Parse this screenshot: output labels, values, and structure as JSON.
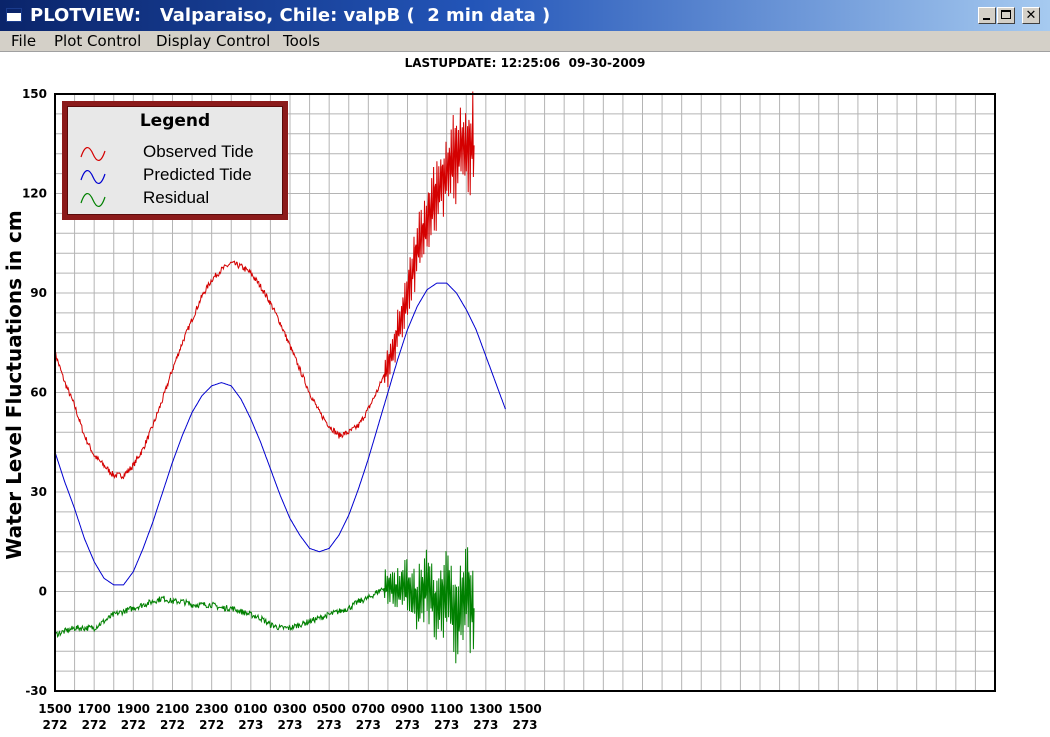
{
  "window": {
    "title": "PLOTVIEW:   Valparaiso, Chile: valpB (  2 min data )",
    "minimize_label": "_",
    "maximize_label": "□",
    "close_label": "✕"
  },
  "menubar": {
    "items": [
      "File",
      "Plot Control",
      "Display Control",
      "Tools"
    ]
  },
  "lastupdate": "LASTUPDATE: 12:25:06  09-30-2009",
  "legend": {
    "title": "Legend",
    "entries": [
      "Observed Tide",
      "Predicted Tide",
      "Residual"
    ]
  },
  "colors": {
    "observed": "#d40000",
    "predicted": "#0000d0",
    "residual": "#008000",
    "legend_border": "#8b1a1a",
    "grid": "#b4b4b4"
  },
  "chart_data": {
    "type": "line",
    "ylabel": "Water Level Fluctuations in cm",
    "ylim": [
      -30,
      150
    ],
    "yticks": [
      -30,
      0,
      30,
      60,
      90,
      120,
      150
    ],
    "grid": true,
    "legend_placement": "top-left",
    "x_unit": "hours since 1500 on day 272",
    "xlim": [
      0,
      48
    ],
    "xticks": [
      {
        "x": 0,
        "label": "1500",
        "day": "272"
      },
      {
        "x": 2,
        "label": "1700",
        "day": "272"
      },
      {
        "x": 4,
        "label": "1900",
        "day": "272"
      },
      {
        "x": 6,
        "label": "2100",
        "day": "272"
      },
      {
        "x": 8,
        "label": "2300",
        "day": "272"
      },
      {
        "x": 10,
        "label": "0100",
        "day": "273"
      },
      {
        "x": 12,
        "label": "0300",
        "day": "273"
      },
      {
        "x": 14,
        "label": "0500",
        "day": "273"
      },
      {
        "x": 16,
        "label": "0700",
        "day": "273"
      },
      {
        "x": 18,
        "label": "0900",
        "day": "273"
      },
      {
        "x": 20,
        "label": "1100",
        "day": "273"
      },
      {
        "x": 22,
        "label": "1300",
        "day": "273"
      },
      {
        "x": 24,
        "label": "1500",
        "day": "273"
      }
    ],
    "series": [
      {
        "name": "Observed Tide",
        "color": "#d40000",
        "points": [
          [
            0,
            72
          ],
          [
            0.5,
            63
          ],
          [
            1,
            56
          ],
          [
            1.5,
            47
          ],
          [
            2,
            41
          ],
          [
            2.5,
            38
          ],
          [
            3,
            35
          ],
          [
            3.5,
            35
          ],
          [
            4,
            38
          ],
          [
            4.5,
            43
          ],
          [
            5,
            50
          ],
          [
            5.5,
            58
          ],
          [
            6,
            67
          ],
          [
            6.5,
            75
          ],
          [
            7,
            82
          ],
          [
            7.5,
            89
          ],
          [
            8,
            94
          ],
          [
            8.5,
            97
          ],
          [
            9,
            99
          ],
          [
            9.5,
            98
          ],
          [
            10,
            96
          ],
          [
            10.5,
            92
          ],
          [
            11,
            87
          ],
          [
            11.5,
            81
          ],
          [
            12,
            74
          ],
          [
            12.5,
            67
          ],
          [
            13,
            60
          ],
          [
            13.5,
            54
          ],
          [
            14,
            50
          ],
          [
            14.5,
            47
          ],
          [
            15,
            48
          ],
          [
            15.5,
            50
          ],
          [
            16,
            55
          ],
          [
            16.5,
            61
          ],
          [
            17,
            68
          ],
          [
            17.5,
            78
          ],
          [
            18,
            90
          ],
          [
            18.5,
            103
          ],
          [
            19,
            112
          ],
          [
            19.5,
            120
          ],
          [
            20,
            127
          ],
          [
            20.5,
            132
          ],
          [
            21,
            135
          ],
          [
            21.4,
            134
          ]
        ]
      },
      {
        "name": "Predicted Tide",
        "color": "#0000d0",
        "points": [
          [
            0,
            42
          ],
          [
            0.5,
            33
          ],
          [
            1,
            25
          ],
          [
            1.5,
            16
          ],
          [
            2,
            9
          ],
          [
            2.5,
            4
          ],
          [
            3,
            2
          ],
          [
            3.5,
            2
          ],
          [
            4,
            6
          ],
          [
            4.5,
            13
          ],
          [
            5,
            21
          ],
          [
            5.5,
            30
          ],
          [
            6,
            39
          ],
          [
            6.5,
            47
          ],
          [
            7,
            54
          ],
          [
            7.5,
            59
          ],
          [
            8,
            62
          ],
          [
            8.5,
            63
          ],
          [
            9,
            62
          ],
          [
            9.5,
            58
          ],
          [
            10,
            52
          ],
          [
            10.5,
            45
          ],
          [
            11,
            37
          ],
          [
            11.5,
            29
          ],
          [
            12,
            22
          ],
          [
            12.5,
            17
          ],
          [
            13,
            13
          ],
          [
            13.5,
            12
          ],
          [
            14,
            13
          ],
          [
            14.5,
            17
          ],
          [
            15,
            23
          ],
          [
            15.5,
            31
          ],
          [
            16,
            40
          ],
          [
            16.5,
            50
          ],
          [
            17,
            60
          ],
          [
            17.5,
            70
          ],
          [
            18,
            79
          ],
          [
            18.5,
            86
          ],
          [
            19,
            91
          ],
          [
            19.5,
            93
          ],
          [
            20,
            93
          ],
          [
            20.5,
            90
          ],
          [
            21,
            85
          ],
          [
            21.5,
            79
          ],
          [
            22,
            71
          ],
          [
            22.5,
            63
          ],
          [
            23,
            55
          ]
        ]
      },
      {
        "name": "Residual",
        "color": "#008000",
        "points": [
          [
            0,
            -13
          ],
          [
            0.5,
            -12
          ],
          [
            1,
            -11
          ],
          [
            1.5,
            -11
          ],
          [
            2,
            -11
          ],
          [
            2.5,
            -9
          ],
          [
            3,
            -7
          ],
          [
            3.5,
            -6
          ],
          [
            4,
            -5
          ],
          [
            4.5,
            -4
          ],
          [
            5,
            -3
          ],
          [
            5.5,
            -2
          ],
          [
            6,
            -3
          ],
          [
            6.5,
            -3
          ],
          [
            7,
            -4
          ],
          [
            7.5,
            -4
          ],
          [
            8,
            -4
          ],
          [
            8.5,
            -5
          ],
          [
            9,
            -5
          ],
          [
            9.5,
            -6
          ],
          [
            10,
            -7
          ],
          [
            10.5,
            -8
          ],
          [
            11,
            -10
          ],
          [
            11.5,
            -11
          ],
          [
            12,
            -11
          ],
          [
            12.5,
            -10
          ],
          [
            13,
            -9
          ],
          [
            13.5,
            -8
          ],
          [
            14,
            -7
          ],
          [
            14.5,
            -6
          ],
          [
            15,
            -5
          ],
          [
            15.5,
            -3
          ],
          [
            16,
            -2
          ],
          [
            16.5,
            0
          ],
          [
            17,
            2
          ],
          [
            17.5,
            0
          ],
          [
            18,
            2
          ],
          [
            18.5,
            -4
          ],
          [
            19,
            3
          ],
          [
            19.5,
            -5
          ],
          [
            20,
            1
          ],
          [
            20.5,
            -8
          ],
          [
            21,
            0
          ],
          [
            21.4,
            -6
          ]
        ]
      }
    ]
  }
}
